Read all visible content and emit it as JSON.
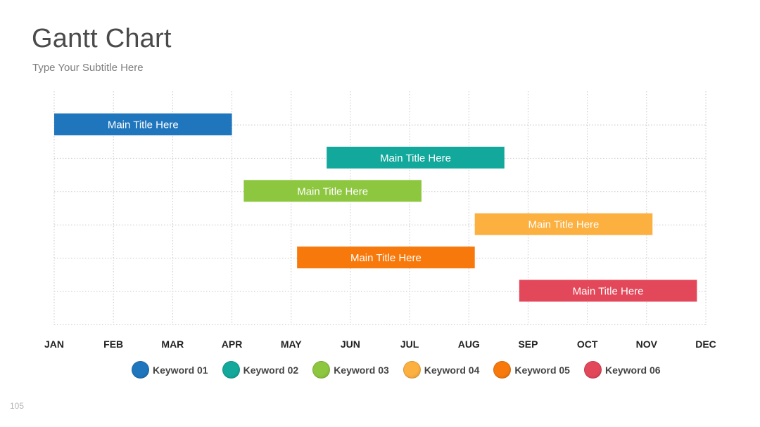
{
  "slide": {
    "title": "Gantt Chart",
    "subtitle": "Type Your Subtitle Here",
    "page_number": "105"
  },
  "chart_data": {
    "type": "gantt",
    "title": "Gantt Chart",
    "subtitle": "Type Your Subtitle Here",
    "x_categories": [
      "JAN",
      "FEB",
      "MAR",
      "APR",
      "MAY",
      "JUN",
      "JUL",
      "AUG",
      "SEP",
      "OCT",
      "NOV",
      "DEC"
    ],
    "xlim": [
      0,
      11
    ],
    "grid": true,
    "legend_position": "bottom-center",
    "tasks": [
      {
        "label": "Main Title Here",
        "start": 0.0,
        "end": 3.0,
        "color": "#1f76bd",
        "keyword": "Keyword 01"
      },
      {
        "label": "Main Title Here",
        "start": 4.6,
        "end": 7.6,
        "color": "#12a89b",
        "keyword": "Keyword 02"
      },
      {
        "label": "Main Title Here",
        "start": 3.2,
        "end": 6.2,
        "color": "#8dc63f",
        "keyword": "Keyword 03"
      },
      {
        "label": "Main Title Here",
        "start": 7.1,
        "end": 10.1,
        "color": "#fbb040",
        "keyword": "Keyword 04"
      },
      {
        "label": "Main Title Here",
        "start": 4.1,
        "end": 7.1,
        "color": "#f7790c",
        "keyword": "Keyword 05"
      },
      {
        "label": "Main Title Here",
        "start": 7.85,
        "end": 10.85,
        "color": "#e2485a",
        "keyword": "Keyword 06"
      }
    ],
    "legend": [
      {
        "label": "Keyword 01",
        "color": "#1f76bd"
      },
      {
        "label": "Keyword 02",
        "color": "#12a89b"
      },
      {
        "label": "Keyword 03",
        "color": "#8dc63f"
      },
      {
        "label": "Keyword 04",
        "color": "#fbb040"
      },
      {
        "label": "Keyword 05",
        "color": "#f7790c"
      },
      {
        "label": "Keyword 06",
        "color": "#e2485a"
      }
    ]
  }
}
